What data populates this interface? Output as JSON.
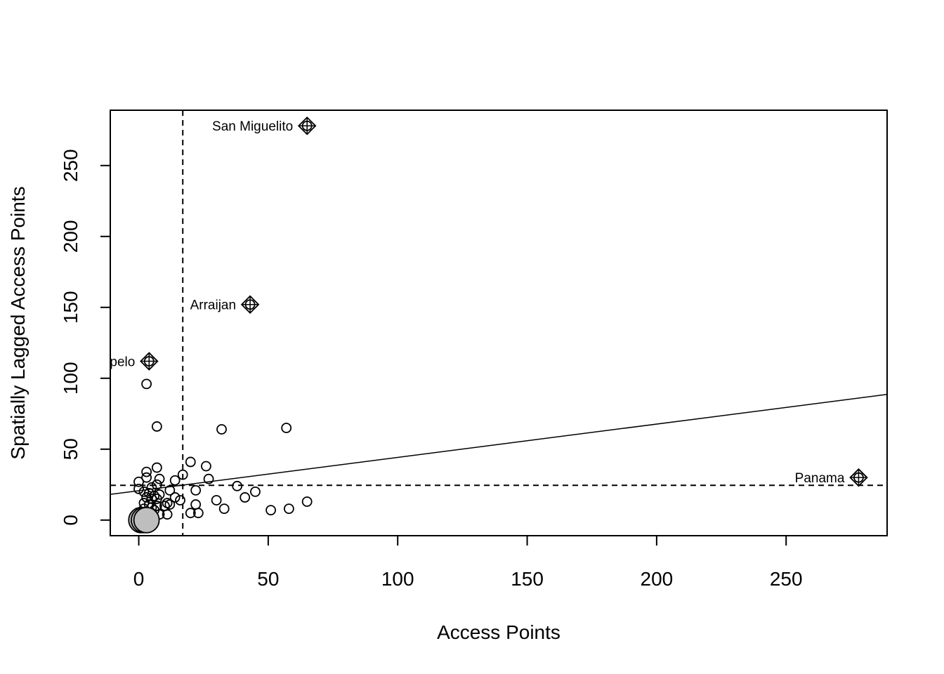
{
  "chart_data": {
    "type": "scatter",
    "title": "",
    "xlabel": "Access Points",
    "ylabel": "Spatially Lagged Access Points",
    "xlim": [
      -11,
      289
    ],
    "ylim": [
      -11,
      289
    ],
    "xticks": [
      0,
      50,
      100,
      150,
      200,
      250
    ],
    "yticks": [
      0,
      50,
      100,
      150,
      200,
      250
    ],
    "grid": false,
    "legend": "none",
    "mean_x": 17,
    "mean_y": 24.5,
    "regression_line": {
      "intercept": 20.7,
      "slope": 0.235
    },
    "points": [
      {
        "x": 3,
        "y": 96
      },
      {
        "x": 7,
        "y": 66
      },
      {
        "x": 32,
        "y": 64
      },
      {
        "x": 57,
        "y": 65
      },
      {
        "x": 20,
        "y": 41
      },
      {
        "x": 26,
        "y": 38
      },
      {
        "x": 7,
        "y": 37
      },
      {
        "x": 3,
        "y": 34
      },
      {
        "x": 17,
        "y": 32
      },
      {
        "x": 3,
        "y": 30
      },
      {
        "x": 8,
        "y": 29
      },
      {
        "x": 27,
        "y": 29
      },
      {
        "x": 14,
        "y": 28
      },
      {
        "x": 0,
        "y": 27
      },
      {
        "x": 7,
        "y": 25
      },
      {
        "x": 38,
        "y": 24
      },
      {
        "x": 5,
        "y": 23
      },
      {
        "x": 0,
        "y": 22
      },
      {
        "x": 12,
        "y": 21
      },
      {
        "x": 22,
        "y": 21
      },
      {
        "x": 45,
        "y": 20
      },
      {
        "x": 2,
        "y": 20
      },
      {
        "x": 4,
        "y": 19
      },
      {
        "x": 8,
        "y": 18
      },
      {
        "x": 6,
        "y": 17
      },
      {
        "x": 3,
        "y": 16
      },
      {
        "x": 14,
        "y": 16
      },
      {
        "x": 41,
        "y": 16
      },
      {
        "x": 5,
        "y": 15
      },
      {
        "x": 7,
        "y": 15
      },
      {
        "x": 16,
        "y": 14
      },
      {
        "x": 30,
        "y": 14
      },
      {
        "x": 65,
        "y": 13
      },
      {
        "x": 2,
        "y": 12
      },
      {
        "x": 11,
        "y": 12
      },
      {
        "x": 4,
        "y": 11
      },
      {
        "x": 12,
        "y": 11
      },
      {
        "x": 22,
        "y": 11
      },
      {
        "x": 7,
        "y": 10
      },
      {
        "x": 10,
        "y": 10
      },
      {
        "x": 5,
        "y": 9
      },
      {
        "x": 33,
        "y": 8
      },
      {
        "x": 58,
        "y": 8
      },
      {
        "x": 2,
        "y": 8
      },
      {
        "x": 51,
        "y": 7
      },
      {
        "x": 6,
        "y": 7
      },
      {
        "x": 20,
        "y": 5
      },
      {
        "x": 23,
        "y": 5
      },
      {
        "x": 8,
        "y": 4
      },
      {
        "x": 11,
        "y": 4
      },
      {
        "x": 3,
        "y": 5
      },
      {
        "x": 4,
        "y": 3
      }
    ],
    "zero_points": [
      {
        "x": 1,
        "y": 0
      },
      {
        "x": 2,
        "y": 0
      },
      {
        "x": 3,
        "y": 0
      }
    ],
    "influential_points": [
      {
        "x": 65,
        "y": 278,
        "label": "San Miguelito"
      },
      {
        "x": 43,
        "y": 152,
        "label": "Arraijan"
      },
      {
        "x": 4,
        "y": 112,
        "label": "pelo"
      },
      {
        "x": 278,
        "y": 30,
        "label": "Panama"
      }
    ]
  }
}
